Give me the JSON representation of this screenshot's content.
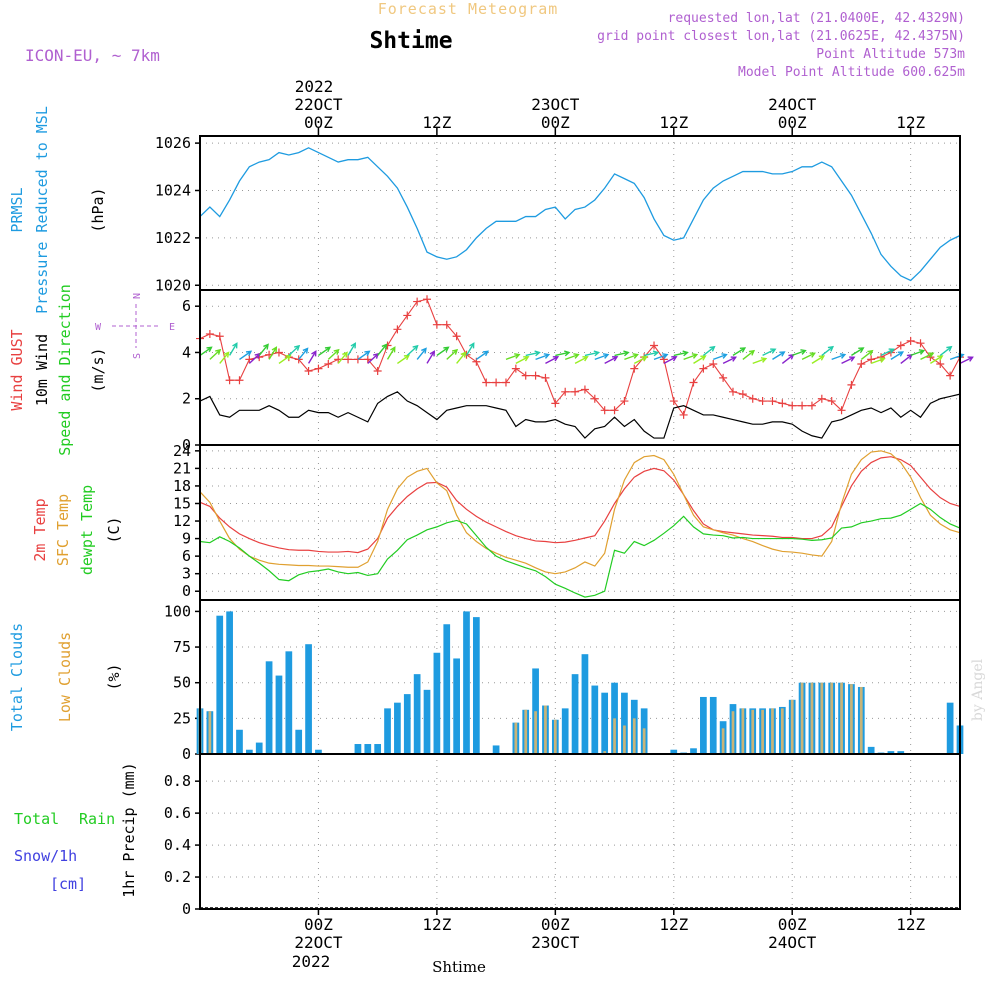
{
  "header": {
    "subtitle": "Forecast Meteogram",
    "title": "Shtime",
    "model": "ICON-EU, ~ 7km",
    "requested": "requested lon,lat (21.0400E, 42.4329N)",
    "grid_point": "grid point closest lon,lat (21.0625E, 42.4375N)",
    "point_alt": "Point Altitude 573m",
    "model_alt": "Model Point Altitude 600.625m",
    "watermark": "by Angel",
    "bottom_label": "Shtime"
  },
  "colors": {
    "pressure": "#1e9be0",
    "gust": "#e84040",
    "wind": "#000000",
    "temp": "#e84040",
    "sfc": "#e0a030",
    "dew": "#22cc22",
    "total_clouds": "#1e9be0",
    "low_clouds": "#c8b478",
    "rain": "#22cc22",
    "snow": "#4040e0",
    "header_purple": "#b060d0",
    "header_orange": "#f0c880"
  },
  "time_axis": {
    "top_year": "2022",
    "top_labels": [
      {
        "t": 12,
        "l1": "22OCT",
        "l2": "00Z"
      },
      {
        "t": 24,
        "l1": "",
        "l2": "12Z"
      },
      {
        "t": 36,
        "l1": "23OCT",
        "l2": "00Z"
      },
      {
        "t": 48,
        "l1": "",
        "l2": "12Z"
      },
      {
        "t": 60,
        "l1": "24OCT",
        "l2": "00Z"
      },
      {
        "t": 72,
        "l1": "",
        "l2": "12Z"
      }
    ],
    "bottom_labels": [
      {
        "t": 12,
        "l1": "00Z",
        "l2": "22OCT"
      },
      {
        "t": 24,
        "l1": "12Z",
        "l2": ""
      },
      {
        "t": 36,
        "l1": "00Z",
        "l2": "23OCT"
      },
      {
        "t": 48,
        "l1": "12Z",
        "l2": ""
      },
      {
        "t": 60,
        "l1": "00Z",
        "l2": "24OCT"
      },
      {
        "t": 72,
        "l1": "12Z",
        "l2": ""
      }
    ],
    "bottom_year": "2022",
    "range_hours": [
      0,
      77
    ]
  },
  "chart_data": [
    {
      "type": "line",
      "panel": "pressure",
      "labels": {
        "l1": "PRMSL",
        "l2": "Pressure Reduced to MSL",
        "unit": "(hPa)"
      },
      "ylim": [
        1019.8,
        1026.3
      ],
      "yticks": [
        1020,
        1022,
        1024,
        1026
      ],
      "x": [
        0,
        1,
        2,
        3,
        4,
        5,
        6,
        7,
        8,
        9,
        10,
        11,
        12,
        13,
        14,
        15,
        16,
        17,
        18,
        19,
        20,
        21,
        22,
        23,
        24,
        25,
        26,
        27,
        28,
        29,
        30,
        31,
        32,
        33,
        34,
        35,
        36,
        37,
        38,
        39,
        40,
        41,
        42,
        43,
        44,
        45,
        46,
        47,
        48,
        49,
        50,
        51,
        52,
        53,
        54,
        55,
        56,
        57,
        58,
        59,
        60,
        61,
        62,
        63,
        64,
        65,
        66,
        67,
        68,
        69,
        70,
        71,
        72,
        73,
        74,
        75,
        76,
        77
      ],
      "series": [
        {
          "name": "PRMSL",
          "values": [
            1022.9,
            1023.3,
            1022.9,
            1023.6,
            1024.4,
            1025.0,
            1025.2,
            1025.3,
            1025.6,
            1025.5,
            1025.6,
            1025.8,
            1025.6,
            1025.4,
            1025.2,
            1025.3,
            1025.3,
            1025.4,
            1025.0,
            1024.6,
            1024.1,
            1023.3,
            1022.4,
            1021.4,
            1021.2,
            1021.1,
            1021.2,
            1021.5,
            1022.0,
            1022.4,
            1022.7,
            1022.7,
            1022.7,
            1022.9,
            1022.9,
            1023.2,
            1023.3,
            1022.8,
            1023.2,
            1023.3,
            1023.6,
            1024.1,
            1024.7,
            1024.5,
            1024.3,
            1023.7,
            1022.8,
            1022.1,
            1021.9,
            1022.0,
            1022.8,
            1023.6,
            1024.1,
            1024.4,
            1024.6,
            1024.8,
            1024.8,
            1024.8,
            1024.7,
            1024.7,
            1024.8,
            1025.0,
            1025.0,
            1025.2,
            1025.0,
            1024.4,
            1023.8,
            1023.0,
            1022.2,
            1021.3,
            1020.8,
            1020.4,
            1020.2,
            1020.6,
            1021.1,
            1021.6,
            1021.9,
            1022.1
          ]
        }
      ]
    },
    {
      "type": "line",
      "panel": "wind",
      "labels": {
        "l1": "Wind GUST",
        "l2": "10m Wind",
        "l3": "Speed and Direction",
        "unit": "(m/s)",
        "compass_n": "N",
        "compass_s": "S",
        "compass_w": "W",
        "compass_e": "E"
      },
      "ylim": [
        0,
        6.7
      ],
      "yticks": [
        0,
        2,
        4,
        6
      ],
      "x": [
        0,
        1,
        2,
        3,
        4,
        5,
        6,
        7,
        8,
        9,
        10,
        11,
        12,
        13,
        14,
        15,
        16,
        17,
        18,
        19,
        20,
        21,
        22,
        23,
        24,
        25,
        26,
        27,
        28,
        29,
        30,
        31,
        32,
        33,
        34,
        35,
        36,
        37,
        38,
        39,
        40,
        41,
        42,
        43,
        44,
        45,
        46,
        47,
        48,
        49,
        50,
        51,
        52,
        53,
        54,
        55,
        56,
        57,
        58,
        59,
        60,
        61,
        62,
        63,
        64,
        65,
        66,
        67,
        68,
        69,
        70,
        71,
        72,
        73,
        74,
        75,
        76,
        77
      ],
      "series": [
        {
          "name": "Wind GUST",
          "values": [
            4.6,
            4.8,
            4.7,
            2.8,
            2.8,
            3.7,
            3.8,
            3.9,
            4.0,
            3.8,
            3.7,
            3.2,
            3.3,
            3.5,
            3.7,
            3.7,
            3.7,
            3.7,
            3.2,
            4.3,
            5.0,
            5.6,
            6.2,
            6.3,
            5.2,
            5.2,
            4.7,
            3.9,
            3.6,
            2.7,
            2.7,
            2.7,
            3.3,
            3.0,
            3.0,
            2.9,
            1.8,
            2.3,
            2.3,
            2.4,
            2.0,
            1.5,
            1.5,
            1.9,
            3.3,
            3.8,
            4.3,
            3.7,
            1.9,
            1.3,
            2.7,
            3.3,
            3.5,
            2.9,
            2.3,
            2.2,
            2.0,
            1.9,
            1.9,
            1.8,
            1.7,
            1.7,
            1.7,
            2.0,
            1.9,
            1.5,
            2.6,
            3.5,
            3.7,
            3.8,
            4.0,
            4.3,
            4.5,
            4.4,
            3.8,
            3.5,
            3.0,
            3.8
          ]
        },
        {
          "name": "10m Wind",
          "values": [
            1.9,
            2.1,
            1.3,
            1.2,
            1.5,
            1.5,
            1.5,
            1.7,
            1.5,
            1.2,
            1.2,
            1.5,
            1.4,
            1.4,
            1.2,
            1.4,
            1.2,
            1.0,
            1.8,
            2.1,
            2.3,
            1.9,
            1.7,
            1.4,
            1.1,
            1.5,
            1.6,
            1.7,
            1.7,
            1.7,
            1.6,
            1.5,
            0.8,
            1.1,
            1.0,
            1.0,
            1.1,
            0.9,
            0.8,
            0.3,
            0.7,
            0.8,
            1.2,
            0.8,
            1.1,
            0.6,
            0.3,
            0.3,
            1.6,
            1.7,
            1.5,
            1.3,
            1.3,
            1.2,
            1.1,
            1.0,
            0.9,
            0.9,
            1.0,
            1.0,
            0.9,
            0.6,
            0.4,
            0.3,
            1.0,
            1.1,
            1.3,
            1.5,
            1.6,
            1.4,
            1.6,
            1.2,
            1.5,
            1.2,
            1.8,
            2.0,
            2.1,
            2.2
          ]
        }
      ]
    },
    {
      "type": "line",
      "panel": "temperature",
      "labels": {
        "l1": "2m Temp",
        "l2": "SFC Temp",
        "l3": "dewpt Temp",
        "unit": "(C)"
      },
      "ylim": [
        -1.5,
        25
      ],
      "yticks": [
        0,
        3,
        6,
        9,
        12,
        15,
        18,
        21,
        24
      ],
      "x": [
        0,
        1,
        2,
        3,
        4,
        5,
        6,
        7,
        8,
        9,
        10,
        11,
        12,
        13,
        14,
        15,
        16,
        17,
        18,
        19,
        20,
        21,
        22,
        23,
        24,
        25,
        26,
        27,
        28,
        29,
        30,
        31,
        32,
        33,
        34,
        35,
        36,
        37,
        38,
        39,
        40,
        41,
        42,
        43,
        44,
        45,
        46,
        47,
        48,
        49,
        50,
        51,
        52,
        53,
        54,
        55,
        56,
        57,
        58,
        59,
        60,
        61,
        62,
        63,
        64,
        65,
        66,
        67,
        68,
        69,
        70,
        71,
        72,
        73,
        74,
        75,
        76,
        77
      ],
      "series": [
        {
          "name": "2m Temp",
          "values": [
            15.2,
            14.5,
            12.5,
            11.0,
            9.8,
            9.0,
            8.3,
            7.8,
            7.4,
            7.1,
            7.0,
            7.0,
            6.8,
            6.7,
            6.7,
            6.8,
            6.6,
            7.2,
            9.0,
            12.5,
            14.5,
            16.2,
            17.5,
            18.5,
            18.6,
            17.8,
            15.5,
            14.0,
            12.8,
            11.8,
            11.0,
            10.2,
            9.5,
            9.0,
            8.6,
            8.5,
            8.3,
            8.4,
            8.7,
            9.1,
            9.5,
            12.0,
            15.0,
            17.5,
            19.5,
            20.5,
            21.0,
            20.6,
            19.0,
            16.5,
            13.8,
            11.5,
            10.5,
            10.2,
            10.0,
            9.8,
            9.6,
            9.5,
            9.4,
            9.2,
            9.2,
            9.0,
            9.0,
            9.5,
            11.0,
            14.5,
            18.0,
            20.5,
            22.0,
            22.8,
            23.0,
            22.5,
            21.5,
            19.5,
            17.5,
            16.0,
            15.0,
            14.5
          ]
        },
        {
          "name": "SFC Temp",
          "values": [
            17.0,
            15.2,
            12.0,
            9.0,
            7.2,
            6.0,
            5.3,
            4.8,
            4.6,
            4.5,
            4.4,
            4.4,
            4.3,
            4.3,
            4.2,
            4.1,
            4.1,
            5.0,
            8.5,
            14.0,
            17.5,
            19.5,
            20.5,
            21.0,
            18.5,
            17.2,
            13.0,
            10.0,
            8.5,
            7.3,
            6.5,
            5.8,
            5.3,
            4.8,
            4.0,
            3.3,
            3.0,
            3.3,
            4.0,
            5.0,
            4.3,
            6.5,
            14.0,
            19.0,
            22.0,
            23.0,
            23.2,
            22.5,
            20.0,
            16.5,
            13.0,
            11.0,
            10.5,
            10.0,
            9.6,
            9.0,
            8.5,
            7.8,
            7.2,
            6.8,
            6.7,
            6.5,
            6.2,
            6.0,
            8.5,
            15.0,
            20.0,
            22.5,
            23.8,
            24.0,
            23.5,
            22.0,
            19.5,
            16.0,
            13.0,
            11.5,
            10.5,
            10.0
          ]
        },
        {
          "name": "dewpt Temp",
          "values": [
            8.5,
            8.3,
            9.3,
            8.5,
            7.4,
            6.0,
            4.8,
            3.5,
            2.0,
            1.8,
            2.8,
            3.3,
            3.5,
            3.8,
            3.3,
            3.0,
            3.2,
            2.7,
            3.0,
            5.5,
            7.0,
            8.8,
            9.6,
            10.5,
            11.0,
            11.7,
            12.1,
            11.5,
            9.5,
            7.5,
            6.0,
            5.2,
            4.6,
            4.0,
            3.5,
            2.5,
            1.2,
            0.5,
            -0.3,
            -1.0,
            -0.7,
            0.0,
            7.0,
            6.5,
            8.5,
            7.8,
            8.7,
            9.9,
            11.2,
            12.8,
            11.0,
            9.8,
            9.6,
            9.5,
            9.1,
            9.2,
            9.0,
            9.0,
            9.0,
            9.0,
            9.0,
            8.9,
            8.7,
            8.8,
            9.1,
            10.8,
            11.0,
            11.7,
            12.0,
            12.4,
            12.5,
            13.0,
            14.0,
            15.0,
            14.0,
            12.6,
            11.5,
            10.8
          ]
        }
      ]
    },
    {
      "type": "bar",
      "panel": "clouds",
      "labels": {
        "l1": "Total Clouds",
        "l2": "Low Clouds",
        "unit": "(%)"
      },
      "ylim": [
        0,
        108
      ],
      "yticks": [
        0,
        25,
        50,
        75,
        100
      ],
      "x": [
        0,
        1,
        2,
        3,
        4,
        5,
        6,
        7,
        8,
        9,
        10,
        11,
        12,
        13,
        14,
        15,
        16,
        17,
        18,
        19,
        20,
        21,
        22,
        23,
        24,
        25,
        26,
        27,
        28,
        29,
        30,
        31,
        32,
        33,
        34,
        35,
        36,
        37,
        38,
        39,
        40,
        41,
        42,
        43,
        44,
        45,
        46,
        47,
        48,
        49,
        50,
        51,
        52,
        53,
        54,
        55,
        56,
        57,
        58,
        59,
        60,
        61,
        62,
        63,
        64,
        65,
        66,
        67,
        68,
        69,
        70,
        71,
        72,
        73,
        74,
        75,
        76,
        77
      ],
      "series": [
        {
          "name": "Total Clouds",
          "values": [
            32,
            30,
            97,
            100,
            17,
            3,
            8,
            65,
            55,
            72,
            17,
            77,
            3,
            0,
            0,
            0,
            7,
            7,
            7,
            32,
            36,
            42,
            56,
            45,
            71,
            91,
            67,
            100,
            96,
            0,
            6,
            0,
            22,
            31,
            60,
            34,
            24,
            32,
            56,
            70,
            48,
            43,
            50,
            43,
            38,
            32,
            0,
            0,
            3,
            1,
            4,
            40,
            40,
            23,
            35,
            32,
            32,
            32,
            32,
            33,
            38,
            50,
            50,
            50,
            50,
            50,
            49,
            47,
            5,
            1,
            2,
            2,
            0,
            0,
            0,
            0,
            36,
            20
          ]
        },
        {
          "name": "Low Clouds",
          "values": [
            32,
            30,
            0,
            0,
            0,
            0,
            0,
            0,
            0,
            0,
            0,
            0,
            0,
            0,
            0,
            0,
            0,
            0,
            0,
            0,
            0,
            0,
            0,
            0,
            0,
            0,
            0,
            0,
            0,
            0,
            0,
            0,
            22,
            31,
            30,
            34,
            24,
            0,
            0,
            0,
            0,
            2,
            25,
            20,
            25,
            18,
            0,
            0,
            0,
            0,
            0,
            0,
            0,
            18,
            30,
            32,
            31,
            31,
            32,
            32,
            38,
            50,
            50,
            50,
            50,
            50,
            49,
            47,
            0,
            0,
            0,
            0,
            0,
            0,
            0,
            0,
            0,
            0
          ]
        }
      ]
    },
    {
      "type": "line",
      "panel": "precip",
      "labels": {
        "l1": "Total",
        "l2": "Rain",
        "l3": "Snow/1h",
        "l4": "[cm]",
        "unit": "1hr Precip (mm)"
      },
      "ylim": [
        0,
        0.97
      ],
      "yticks": [
        0,
        0.2,
        0.4,
        0.6,
        0.8
      ],
      "ytick_labels": [
        "0",
        "0.2",
        "0.4",
        "0.6",
        "0.8"
      ],
      "series": [
        {
          "name": "Total Rain",
          "values": []
        }
      ]
    }
  ]
}
